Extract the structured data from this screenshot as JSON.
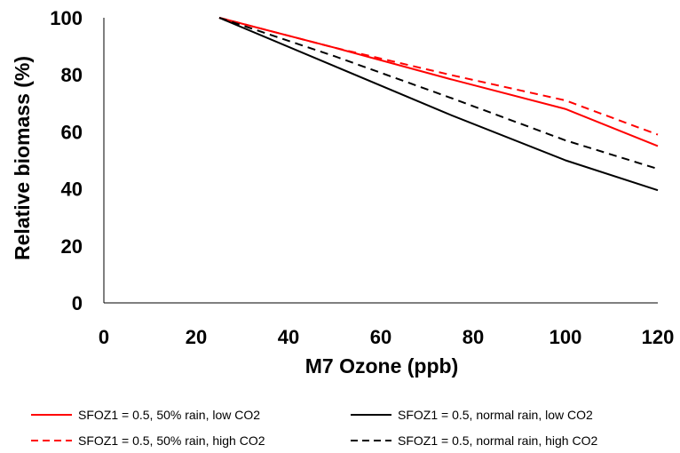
{
  "chart_data": {
    "type": "line",
    "title": "",
    "xlabel": "M7 Ozone (ppb)",
    "ylabel": "Relative biomass (%)",
    "xlim": [
      0,
      120
    ],
    "ylim": [
      0,
      100
    ],
    "xticks": [
      0,
      20,
      40,
      60,
      80,
      100,
      120
    ],
    "yticks": [
      0,
      20,
      40,
      60,
      80,
      100
    ],
    "grid": false,
    "legend_position": "bottom",
    "series": [
      {
        "name": "SFOZ1 = 0.5, 50% rain, low CO2",
        "color": "#ff0000",
        "dash": "solid",
        "x": [
          25,
          50,
          75,
          100,
          120
        ],
        "y": [
          100,
          89.5,
          78.5,
          68,
          55
        ]
      },
      {
        "name": "SFOZ1 = 0.5, normal rain, low CO2",
        "color": "#000000",
        "dash": "solid",
        "x": [
          25,
          50,
          75,
          100,
          120
        ],
        "y": [
          100,
          83,
          66,
          50,
          39.5
        ]
      },
      {
        "name": "SFOZ1 = 0.5, 50% rain, high CO2",
        "color": "#ff0000",
        "dash": "dashed",
        "x": [
          25,
          50,
          75,
          100,
          120
        ],
        "y": [
          100,
          89.5,
          80,
          71,
          59
        ]
      },
      {
        "name": "SFOZ1 = 0.5, normal rain, high CO2",
        "color": "#000000",
        "dash": "dashed",
        "x": [
          25,
          50,
          75,
          100,
          120
        ],
        "y": [
          100,
          86.5,
          72,
          57,
          47
        ]
      }
    ]
  }
}
